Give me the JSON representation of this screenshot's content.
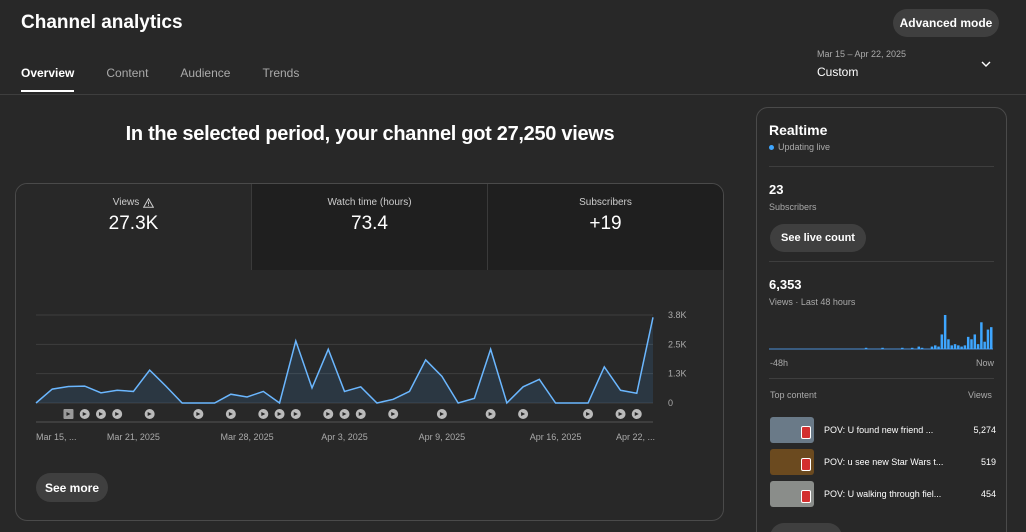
{
  "header": {
    "title": "Channel analytics",
    "advanced_mode": "Advanced mode",
    "date_range": "Mar 15 – Apr 22, 2025",
    "date_mode": "Custom"
  },
  "tabs": [
    {
      "label": "Overview",
      "active": true
    },
    {
      "label": "Content"
    },
    {
      "label": "Audience"
    },
    {
      "label": "Trends"
    }
  ],
  "headline": "In the selected period, your channel got 27,250 views",
  "metrics": [
    {
      "label": "Views",
      "value": "27.3K",
      "icon": "warning-icon"
    },
    {
      "label": "Watch time (hours)",
      "value": "73.4"
    },
    {
      "label": "Subscribers",
      "value": "+19"
    }
  ],
  "see_more": "See more",
  "realtime": {
    "title": "Realtime",
    "status": "Updating live",
    "subscribers_value": "23",
    "subscribers_label": "Subscribers",
    "live_count_button": "See live count",
    "views_value": "6,353",
    "views_label": "Views · Last 48 hours",
    "axis_start": "-48h",
    "axis_end": "Now",
    "bars": [
      0,
      0,
      0,
      0,
      0,
      0,
      0,
      0,
      0,
      0,
      0,
      0,
      0,
      0,
      0,
      0,
      0,
      0,
      0,
      0,
      0,
      0,
      0,
      0,
      0,
      0,
      0,
      0,
      0,
      1,
      0,
      0,
      0,
      0,
      1,
      0,
      0,
      0,
      0,
      0,
      1,
      0,
      0,
      1,
      0,
      2,
      1,
      0,
      0,
      2,
      3,
      2,
      12,
      28,
      8,
      3,
      4,
      3,
      2,
      3,
      10,
      8,
      12,
      4,
      22,
      6,
      16,
      18
    ]
  },
  "top_content": {
    "heading": "Top content",
    "views_heading": "Views",
    "items": [
      {
        "title": "POV: U found new friend ...",
        "views": "5,274",
        "thumb": "#6a7a88"
      },
      {
        "title": "POV: u see new Star Wars t...",
        "views": "519",
        "thumb": "#6b4a1f"
      },
      {
        "title": "POV: U walking through fiel...",
        "views": "454",
        "thumb": "#8a8d8a"
      }
    ]
  },
  "chart_data": {
    "type": "area",
    "title": "",
    "xlabel": "",
    "ylabel": "",
    "x_tick_labels": [
      "Mar 15, ...",
      "Mar 21, 2025",
      "Mar 28, 2025",
      "Apr 3, 2025",
      "Apr 9, 2025",
      "Apr 16, 2025",
      "Apr 22, ..."
    ],
    "y_tick_labels": [
      "3.8K",
      "2.5K",
      "1.3K",
      "0"
    ],
    "ylim": [
      0,
      3800
    ],
    "y_ticks": [
      0,
      1267,
      2533,
      3800
    ],
    "x": [
      "Mar 15",
      "Mar 16",
      "Mar 17",
      "Mar 18",
      "Mar 19",
      "Mar 20",
      "Mar 21",
      "Mar 22",
      "Mar 23",
      "Mar 24",
      "Mar 25",
      "Mar 26",
      "Mar 27",
      "Mar 28",
      "Mar 29",
      "Mar 30",
      "Mar 31",
      "Apr 1",
      "Apr 2",
      "Apr 3",
      "Apr 4",
      "Apr 5",
      "Apr 6",
      "Apr 7",
      "Apr 8",
      "Apr 9",
      "Apr 10",
      "Apr 11",
      "Apr 12",
      "Apr 13",
      "Apr 14",
      "Apr 15",
      "Apr 16",
      "Apr 17",
      "Apr 18",
      "Apr 19",
      "Apr 20",
      "Apr 21",
      "Apr 22"
    ],
    "series": [
      {
        "values": [
          0,
          600,
          710,
          730,
          440,
          550,
          500,
          1420,
          730,
          0,
          0,
          0,
          380,
          260,
          500,
          0,
          2680,
          650,
          2320,
          500,
          700,
          0,
          160,
          500,
          1860,
          1150,
          0,
          200,
          2320,
          0,
          700,
          1020,
          0,
          0,
          0,
          1560,
          550,
          420,
          3700
        ]
      }
    ],
    "video_markers": [
      2,
      3,
      4,
      5,
      7,
      10,
      12,
      14,
      15,
      16,
      18,
      19,
      20,
      22,
      25,
      28,
      30,
      34,
      36,
      37
    ],
    "grid": true
  }
}
